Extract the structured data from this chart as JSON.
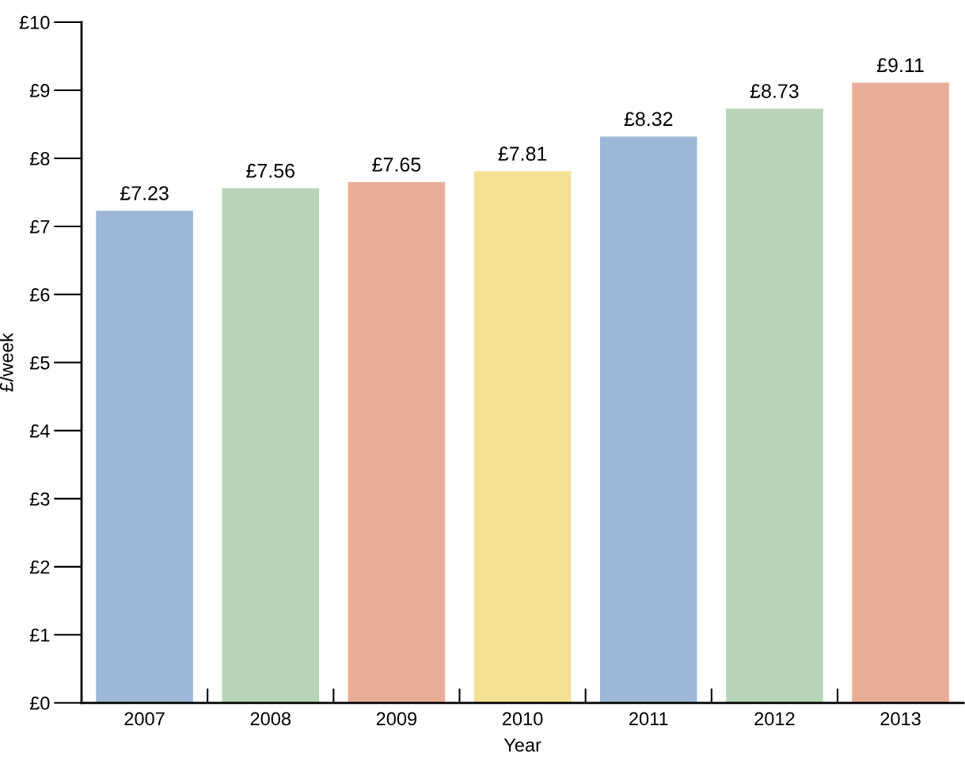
{
  "chart_data": {
    "type": "bar",
    "xlabel": "Year",
    "ylabel": "£/week",
    "categories": [
      "2007",
      "2008",
      "2009",
      "2010",
      "2011",
      "2012",
      "2013"
    ],
    "values": [
      7.23,
      7.56,
      7.65,
      7.81,
      8.32,
      8.73,
      9.11
    ],
    "colors": [
      "#9db7d7",
      "#b7d4b7",
      "#eaae98",
      "#f2e193",
      "#9db7d7",
      "#b7d4b7",
      "#eaae98"
    ],
    "value_labels": [
      "£7.23",
      "£7.56",
      "£7.65",
      "£7.81",
      "£8.32",
      "£8.73",
      "£9.11"
    ],
    "ylim": [
      0,
      10
    ],
    "yticks": [
      {
        "value": 0,
        "label": "£0"
      },
      {
        "value": 1,
        "label": "£1"
      },
      {
        "value": 2,
        "label": "£2"
      },
      {
        "value": 3,
        "label": "£3"
      },
      {
        "value": 4,
        "label": "£4"
      },
      {
        "value": 5,
        "label": "£5"
      },
      {
        "value": 6,
        "label": "£6"
      },
      {
        "value": 7,
        "label": "£7"
      },
      {
        "value": 8,
        "label": "£8"
      },
      {
        "value": 9,
        "label": "£9"
      },
      {
        "value": 10,
        "label": "£10"
      }
    ],
    "grid": false
  }
}
